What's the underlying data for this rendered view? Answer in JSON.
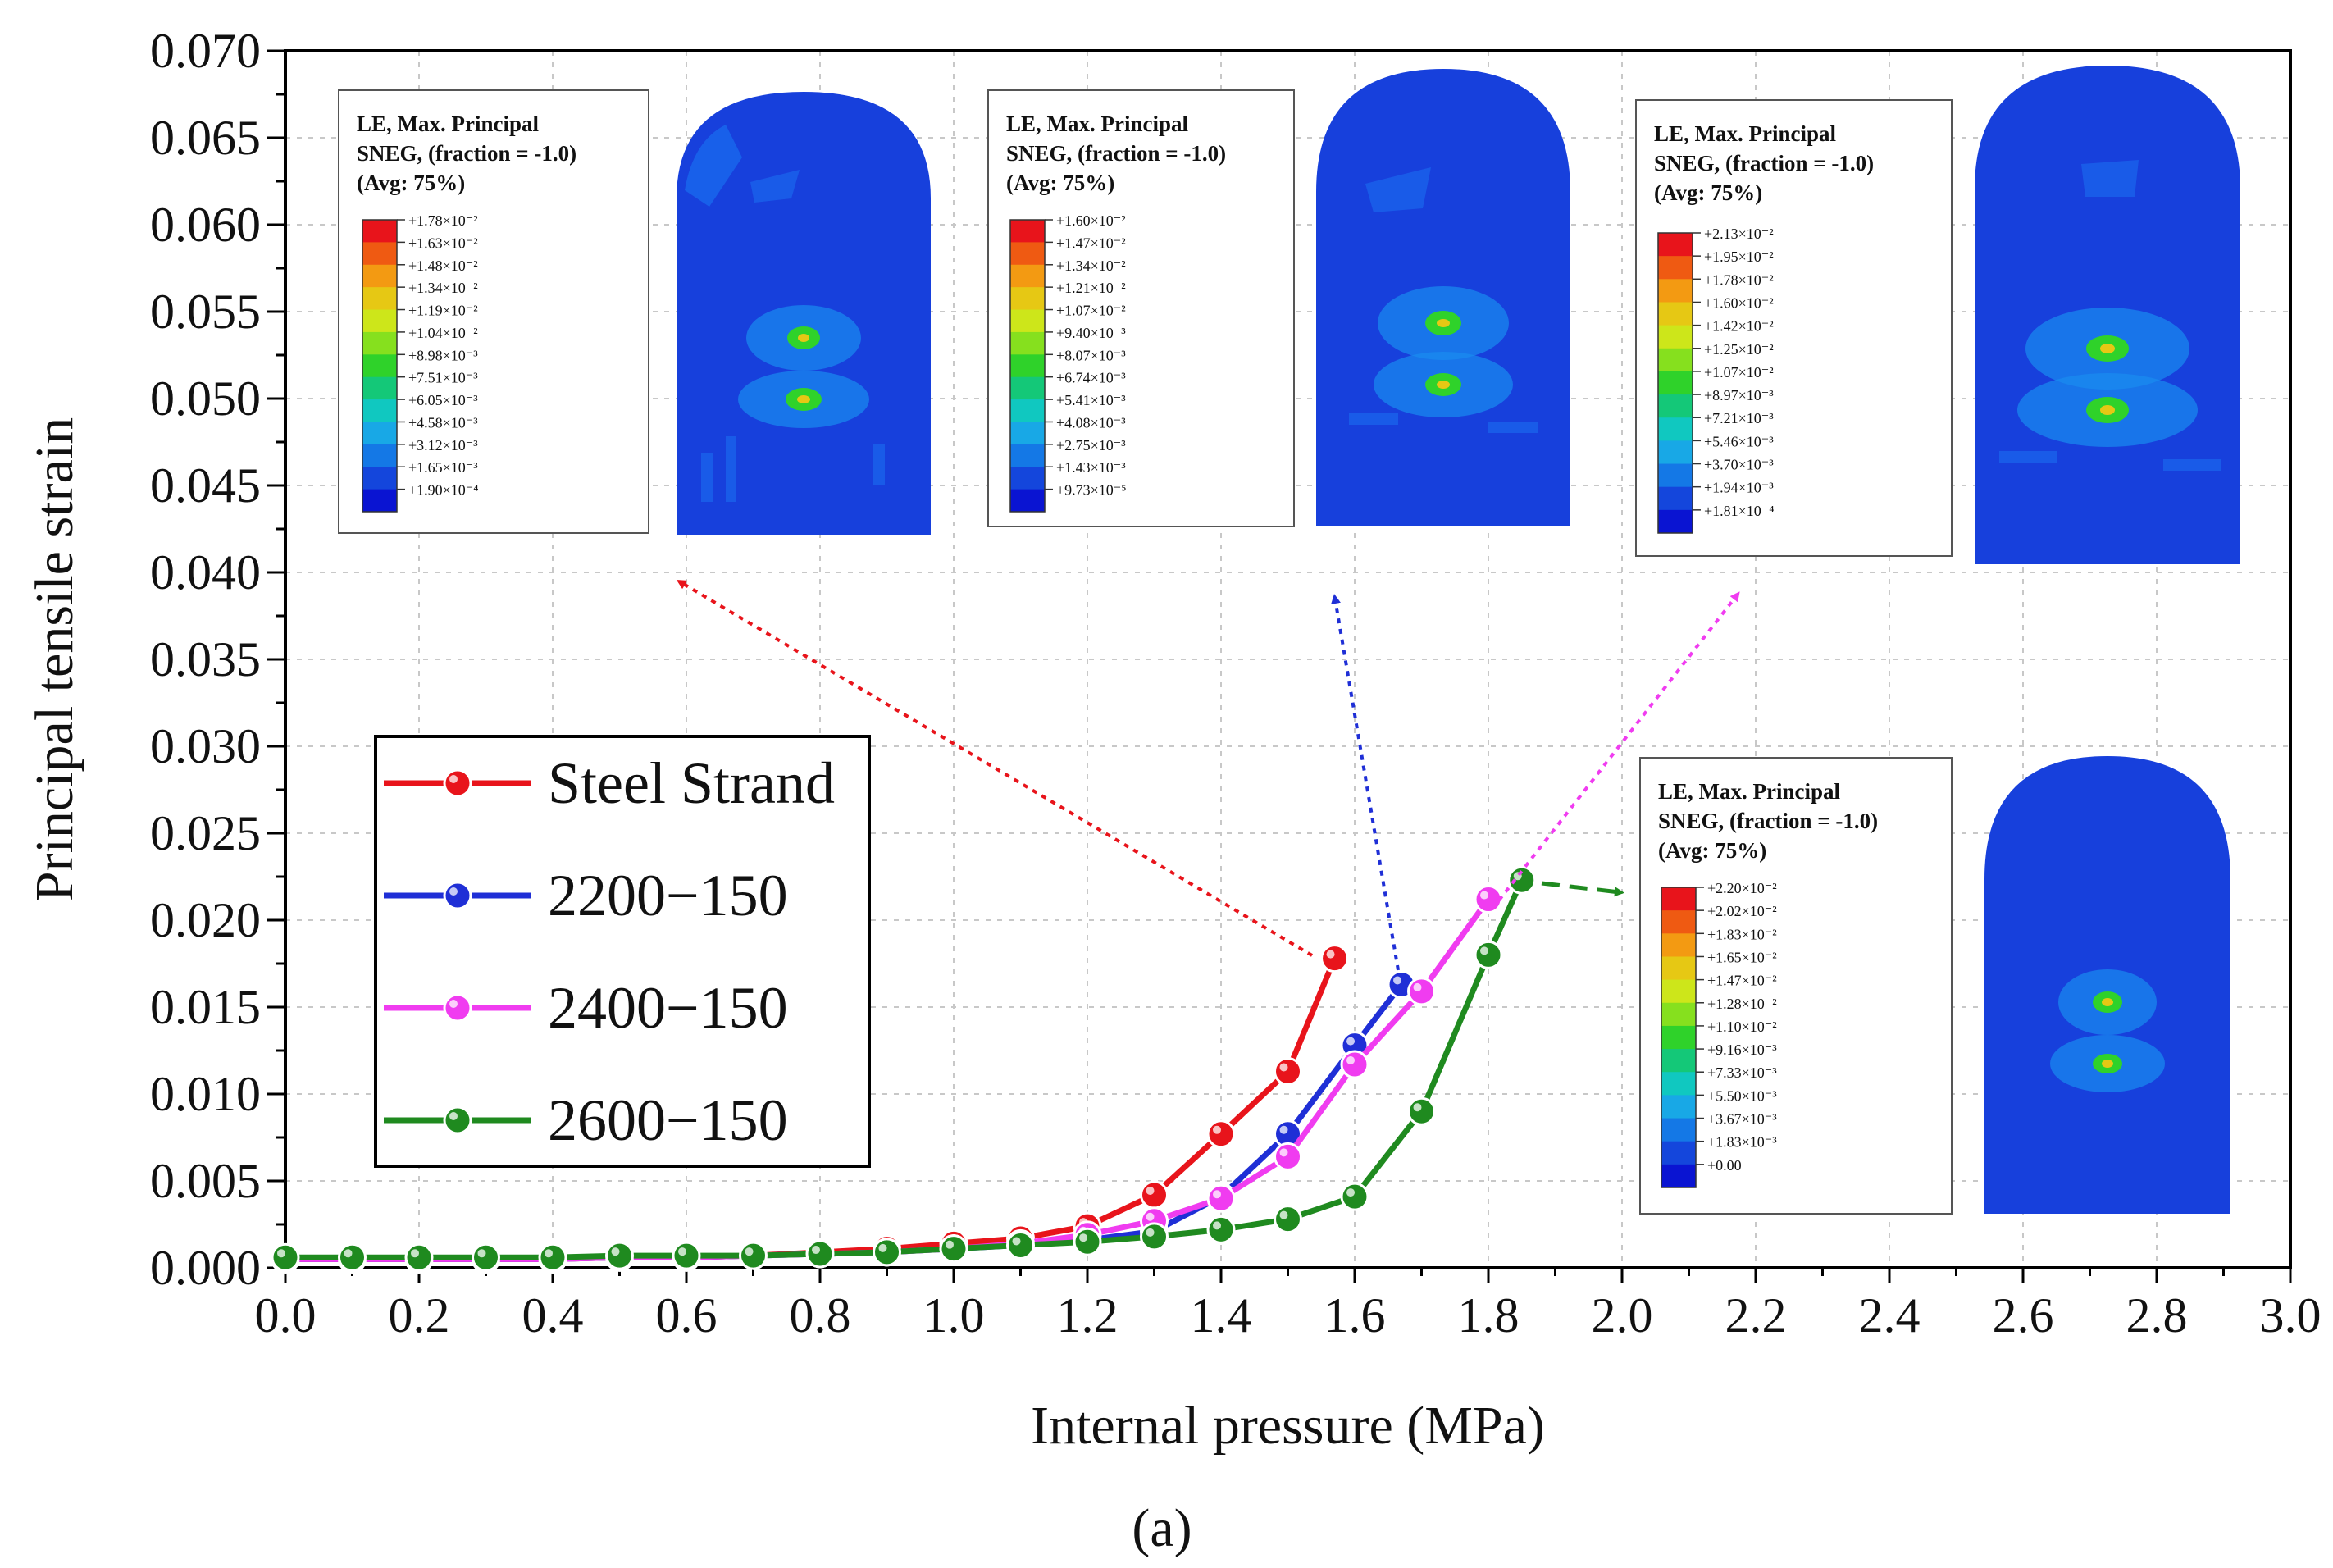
{
  "chart_data": {
    "type": "line",
    "title": "",
    "xlabel": "Internal pressure (MPa)",
    "ylabel": "Principal tensile strain",
    "xlim": [
      0.0,
      3.0
    ],
    "ylim": [
      0.0,
      0.07
    ],
    "xticks": [
      "0.0",
      "0.2",
      "0.4",
      "0.6",
      "0.8",
      "1.0",
      "1.2",
      "1.4",
      "1.6",
      "1.8",
      "2.0",
      "2.2",
      "2.4",
      "2.6",
      "2.8",
      "3.0"
    ],
    "yticks": [
      "0.000",
      "0.005",
      "0.010",
      "0.015",
      "0.020",
      "0.025",
      "0.030",
      "0.035",
      "0.040",
      "0.045",
      "0.050",
      "0.055",
      "0.060",
      "0.065",
      "0.070"
    ],
    "grid": true,
    "legend_position": "center-left",
    "series": [
      {
        "name": "Steel Strand",
        "color": "#e8141b",
        "x": [
          0.0,
          0.1,
          0.2,
          0.3,
          0.4,
          0.5,
          0.6,
          0.7,
          0.8,
          0.9,
          1.0,
          1.1,
          1.2,
          1.3,
          1.4,
          1.5,
          1.57
        ],
        "y": [
          0.0005,
          0.0005,
          0.0005,
          0.0005,
          0.0005,
          0.0006,
          0.0006,
          0.0007,
          0.0009,
          0.0011,
          0.0014,
          0.0017,
          0.0024,
          0.0042,
          0.0077,
          0.0113,
          0.0178
        ]
      },
      {
        "name": "2200−150",
        "color": "#1f2fd6",
        "x": [
          0.0,
          0.1,
          0.2,
          0.3,
          0.4,
          0.5,
          0.6,
          0.7,
          0.8,
          0.9,
          1.0,
          1.1,
          1.2,
          1.3,
          1.4,
          1.5,
          1.6,
          1.67
        ],
        "y": [
          0.0005,
          0.0005,
          0.0005,
          0.0005,
          0.0005,
          0.0006,
          0.0006,
          0.0007,
          0.0008,
          0.0009,
          0.0011,
          0.0013,
          0.0016,
          0.0021,
          0.0041,
          0.0077,
          0.0128,
          0.0163
        ]
      },
      {
        "name": "2400−150",
        "color": "#f03cf0",
        "x": [
          0.0,
          0.1,
          0.2,
          0.3,
          0.4,
          0.5,
          0.6,
          0.7,
          0.8,
          0.9,
          1.0,
          1.1,
          1.2,
          1.3,
          1.4,
          1.5,
          1.6,
          1.7,
          1.8
        ],
        "y": [
          0.0005,
          0.0005,
          0.0005,
          0.0005,
          0.0005,
          0.0006,
          0.0006,
          0.0007,
          0.0008,
          0.0009,
          0.0011,
          0.0014,
          0.0019,
          0.0027,
          0.004,
          0.0064,
          0.0117,
          0.0159,
          0.0212
        ]
      },
      {
        "name": "2600−150",
        "color": "#1f8a1f",
        "x": [
          0.0,
          0.1,
          0.2,
          0.3,
          0.4,
          0.5,
          0.6,
          0.7,
          0.8,
          0.9,
          1.0,
          1.1,
          1.2,
          1.3,
          1.4,
          1.5,
          1.6,
          1.7,
          1.8,
          1.85
        ],
        "y": [
          0.0006,
          0.0006,
          0.0006,
          0.0006,
          0.0006,
          0.0007,
          0.0007,
          0.0007,
          0.0008,
          0.0009,
          0.0011,
          0.0013,
          0.0015,
          0.0018,
          0.0022,
          0.0028,
          0.0041,
          0.009,
          0.018,
          0.0223
        ]
      }
    ],
    "annotations": [
      {
        "type": "strain-contour-panel",
        "lines": [
          "LE, Max. Principal",
          "SNEG, (fraction = -1.0)",
          "(Avg: 75%)"
        ],
        "scale": [
          "+1.78×10⁻²",
          "+1.63×10⁻²",
          "+1.48×10⁻²",
          "+1.34×10⁻²",
          "+1.19×10⁻²",
          "+1.04×10⁻²",
          "+8.98×10⁻³",
          "+7.51×10⁻³",
          "+6.05×10⁻³",
          "+4.58×10⁻³",
          "+3.12×10⁻³",
          "+1.65×10⁻³",
          "+1.90×10⁻⁴"
        ]
      },
      {
        "type": "strain-contour-panel",
        "lines": [
          "LE, Max. Principal",
          "SNEG, (fraction = -1.0)",
          "(Avg: 75%)"
        ],
        "scale": [
          "+1.60×10⁻²",
          "+1.47×10⁻²",
          "+1.34×10⁻²",
          "+1.21×10⁻²",
          "+1.07×10⁻²",
          "+9.40×10⁻³",
          "+8.07×10⁻³",
          "+6.74×10⁻³",
          "+5.41×10⁻³",
          "+4.08×10⁻³",
          "+2.75×10⁻³",
          "+1.43×10⁻³",
          "+9.73×10⁻⁵"
        ]
      },
      {
        "type": "strain-contour-panel",
        "lines": [
          "LE, Max. Principal",
          "SNEG, (fraction = -1.0)",
          "(Avg: 75%)"
        ],
        "scale": [
          "+2.13×10⁻²",
          "+1.95×10⁻²",
          "+1.78×10⁻²",
          "+1.60×10⁻²",
          "+1.42×10⁻²",
          "+1.25×10⁻²",
          "+1.07×10⁻²",
          "+8.97×10⁻³",
          "+7.21×10⁻³",
          "+5.46×10⁻³",
          "+3.70×10⁻³",
          "+1.94×10⁻³",
          "+1.81×10⁻⁴"
        ]
      },
      {
        "type": "strain-contour-panel",
        "lines": [
          "LE, Max. Principal",
          "SNEG, (fraction = -1.0)",
          "(Avg: 75%)"
        ],
        "scale": [
          "+2.20×10⁻²",
          "+2.02×10⁻²",
          "+1.83×10⁻²",
          "+1.65×10⁻²",
          "+1.47×10⁻²",
          "+1.28×10⁻²",
          "+1.10×10⁻²",
          "+9.16×10⁻³",
          "+7.33×10⁻³",
          "+5.50×10⁻³",
          "+3.67×10⁻³",
          "+1.83×10⁻³",
          "+0.00"
        ]
      }
    ],
    "caption": "(a)"
  },
  "colorbar": [
    "#e8141b",
    "#ef5a12",
    "#f39a12",
    "#e6c814",
    "#cde61a",
    "#86e01e",
    "#2fd22a",
    "#14c878",
    "#10c8c0",
    "#18a8e6",
    "#1478e6",
    "#1446dc",
    "#0a14d2"
  ]
}
